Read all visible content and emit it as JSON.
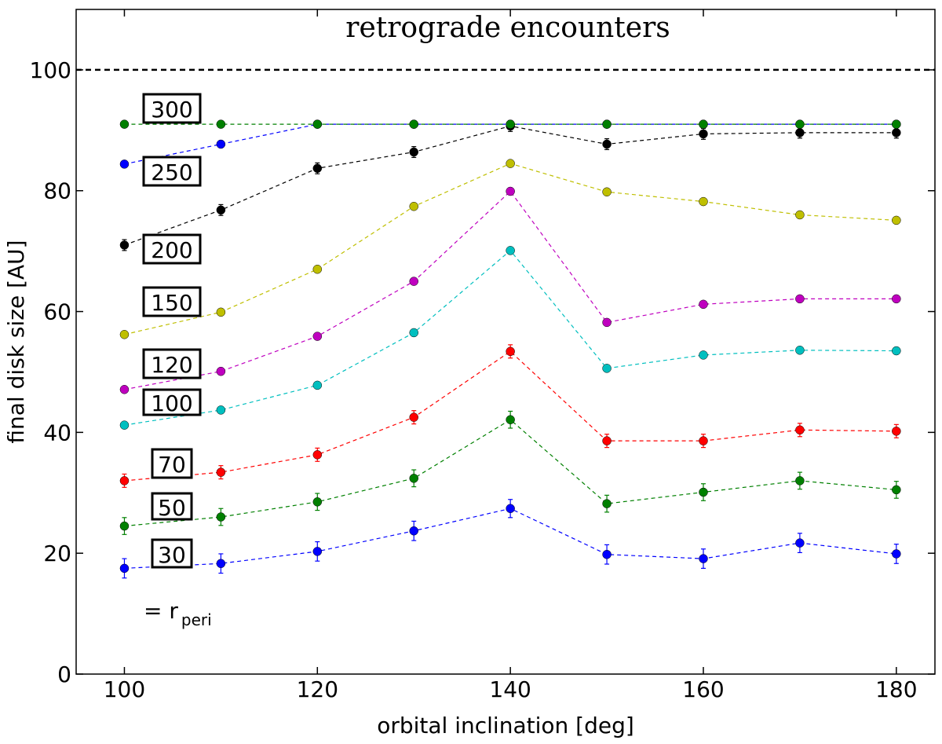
{
  "chart_data": {
    "type": "line",
    "title": "retrograde encounters",
    "xlabel": "orbital inclination [deg]",
    "ylabel": "final disk size [AU]",
    "xlim": [
      95,
      184
    ],
    "ylim": [
      0,
      110
    ],
    "x": [
      100,
      110,
      120,
      130,
      140,
      150,
      160,
      170,
      180
    ],
    "xticks": [
      100,
      120,
      140,
      160,
      180
    ],
    "yticks": [
      0,
      20,
      40,
      60,
      80,
      100
    ],
    "reference_line": {
      "y": 100,
      "color": "#000000",
      "style": "dashed"
    },
    "note": {
      "prefix": "= r",
      "subscript": "peri"
    },
    "series": [
      {
        "name": "30",
        "color": "#0000ff",
        "values": [
          17.5,
          18.3,
          20.3,
          23.7,
          27.4,
          19.8,
          19.1,
          21.7,
          19.9
        ],
        "errors": [
          1.6,
          1.6,
          1.6,
          1.6,
          1.5,
          1.6,
          1.6,
          1.6,
          1.6
        ]
      },
      {
        "name": "50",
        "color": "#008000",
        "values": [
          24.5,
          26.0,
          28.5,
          32.4,
          42.1,
          28.2,
          30.1,
          32.0,
          30.5
        ],
        "errors": [
          1.4,
          1.4,
          1.4,
          1.4,
          1.4,
          1.4,
          1.4,
          1.4,
          1.4
        ]
      },
      {
        "name": "70",
        "color": "#ff0000",
        "values": [
          32.0,
          33.4,
          36.3,
          42.5,
          53.4,
          38.6,
          38.6,
          40.4,
          40.2
        ],
        "errors": [
          1.1,
          1.1,
          1.1,
          1.1,
          1.1,
          1.1,
          1.1,
          1.1,
          1.1
        ]
      },
      {
        "name": "100",
        "color": "#00bfbf",
        "values": [
          41.2,
          43.7,
          47.8,
          56.5,
          70.1,
          50.6,
          52.8,
          53.6,
          53.5
        ],
        "errors": [
          0.3,
          0.3,
          0.3,
          0.3,
          0.3,
          0.3,
          0.3,
          0.3,
          0.3
        ]
      },
      {
        "name": "120",
        "color": "#bf00bf",
        "values": [
          47.1,
          50.1,
          55.9,
          65.0,
          79.9,
          58.2,
          61.2,
          62.1,
          62.1
        ],
        "errors": [
          0.3,
          0.3,
          0.3,
          0.3,
          0.3,
          0.3,
          0.3,
          0.3,
          0.3
        ]
      },
      {
        "name": "150",
        "color": "#bfbf00",
        "values": [
          56.2,
          59.9,
          67.0,
          77.4,
          84.5,
          79.8,
          78.2,
          76.0,
          75.1
        ],
        "errors": [
          0.3,
          0.3,
          0.3,
          0.3,
          0.3,
          0.3,
          0.3,
          0.3,
          0.3
        ]
      },
      {
        "name": "200",
        "color": "#000000",
        "values": [
          71.0,
          76.8,
          83.7,
          86.4,
          90.7,
          87.7,
          89.4,
          89.6,
          89.6
        ],
        "errors": [
          0.9,
          0.9,
          0.9,
          0.9,
          0.9,
          0.9,
          0.9,
          0.9,
          0.9
        ]
      },
      {
        "name": "250",
        "color": "#0000ff",
        "values": [
          84.4,
          87.7,
          91.0,
          91.0,
          91.0,
          91.0,
          91.0,
          91.0,
          91.0
        ],
        "errors": [
          0,
          0,
          0,
          0,
          0,
          0,
          0,
          0,
          0
        ]
      },
      {
        "name": "300",
        "color": "#008000",
        "values": [
          91.0,
          91.0,
          91.0,
          91.0,
          91.0,
          91.0,
          91.0,
          91.0,
          91.0
        ],
        "errors": [
          0,
          0,
          0,
          0,
          0,
          0,
          0,
          0,
          0
        ]
      }
    ]
  }
}
